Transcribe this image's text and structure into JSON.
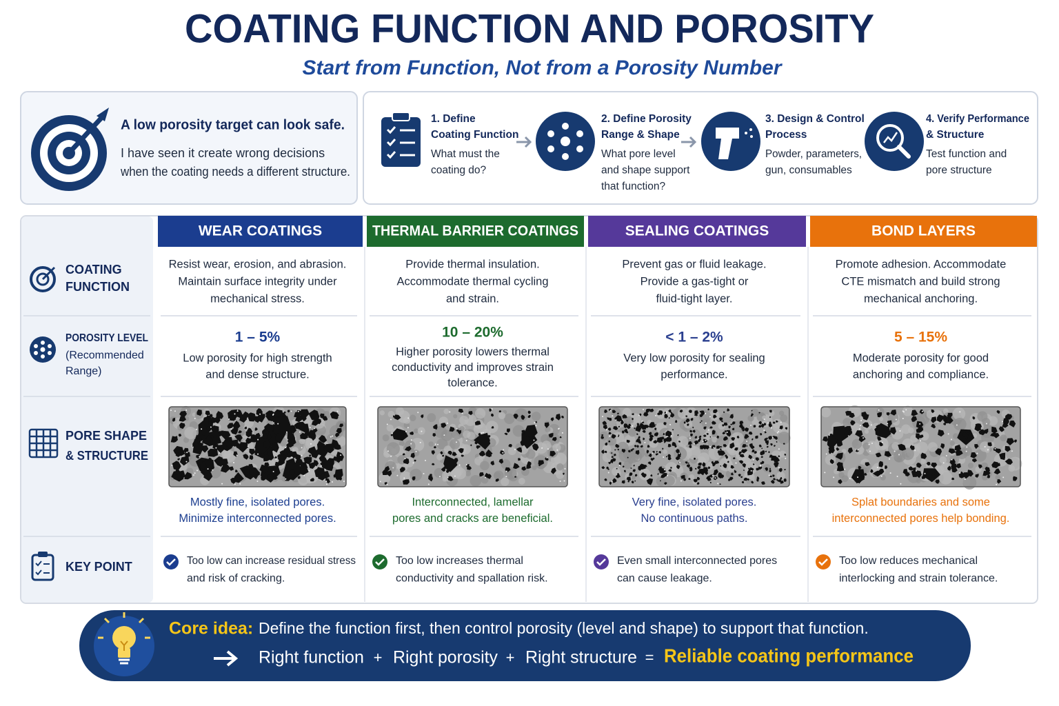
{
  "header": {
    "title": "COATING FUNCTION AND POROSITY",
    "subtitle": "Start from Function, Not from a Porosity Number"
  },
  "intro": {
    "heading": "A low porosity target can look safe.",
    "lines": [
      "I have seen it create wrong decisions",
      "when the coating needs a different structure."
    ]
  },
  "steps": [
    {
      "title": [
        "1. Define",
        "Coating Function"
      ],
      "text": [
        "What must the",
        "coating do?"
      ]
    },
    {
      "title": [
        "2. Define Porosity",
        "Range & Shape"
      ],
      "text": [
        "What pore level",
        "and shape support",
        "that function?"
      ]
    },
    {
      "title": [
        "3. Design & Control",
        "Process"
      ],
      "text": [
        "Powder, parameters,",
        "gun, consumables"
      ]
    },
    {
      "title": [
        "4. Verify Performance",
        "& Structure"
      ],
      "text": [
        "Test function and",
        "pore structure"
      ]
    }
  ],
  "table": {
    "row_labels": [
      {
        "lines": [
          "COATING",
          "FUNCTION"
        ]
      },
      {
        "lines": [
          "POROSITY LEVEL"
        ],
        "sub": [
          "(Recommended",
          "Range)"
        ]
      },
      {
        "lines": [
          "PORE SHAPE",
          "& STRUCTURE"
        ]
      },
      {
        "lines": [
          "KEY POINT"
        ]
      }
    ],
    "columns": [
      {
        "header": "WEAR COATINGS",
        "color": "#1b3d8f",
        "text_color": "#1b3d8f",
        "function": [
          "Resist wear, erosion, and abrasion.",
          "Maintain surface integrity under",
          "mechanical stress."
        ],
        "porosity": "1 – 5%",
        "porosity_text": [
          "Low porosity for high strength",
          "and dense structure."
        ],
        "pore_text": [
          "Mostly fine, isolated pores.",
          "Minimize interconnected pores."
        ],
        "key_point": [
          "Too low can increase residual stress",
          "and risk of cracking."
        ]
      },
      {
        "header": "THERMAL BARRIER COATINGS",
        "color": "#1d6b2e",
        "text_color": "#1d6b2e",
        "function": [
          "Provide thermal insulation.",
          "Accommodate thermal cycling",
          "and strain."
        ],
        "porosity": "10 – 20%",
        "porosity_text": [
          "Higher porosity lowers thermal",
          "conductivity and improves strain",
          "tolerance."
        ],
        "pore_text": [
          "Interconnected, lamellar",
          "pores and cracks are beneficial."
        ],
        "key_point": [
          "Too low increases thermal",
          "conductivity and spallation risk."
        ]
      },
      {
        "header": "SEALING COATINGS",
        "color": "#55399a",
        "text_color": "#2a3f8f",
        "function": [
          "Prevent gas or fluid leakage.",
          "Provide a gas-tight or",
          "fluid-tight layer."
        ],
        "porosity": "< 1 – 2%",
        "porosity_text": [
          "Very low porosity for sealing",
          "performance."
        ],
        "pore_text": [
          "Very fine, isolated pores.",
          "No continuous paths."
        ],
        "key_point": [
          "Even small interconnected pores",
          "can cause leakage."
        ]
      },
      {
        "header": "BOND LAYERS",
        "color": "#e8720c",
        "text_color": "#e8720c",
        "function": [
          "Promote adhesion. Accommodate",
          "CTE mismatch and build strong",
          "mechanical anchoring."
        ],
        "porosity": "5 – 15%",
        "porosity_text": [
          "Moderate porosity for good",
          "anchoring and compliance."
        ],
        "pore_text": [
          "Splat boundaries and some",
          "interconnected pores help bonding."
        ],
        "key_point": [
          "Too low reduces mechanical",
          "interlocking and strain tolerance."
        ]
      }
    ]
  },
  "footer": {
    "core_label": "Core idea:",
    "core_text": "Define the function first, then control porosity (level and shape) to support that function.",
    "equation": [
      "Right function",
      "+",
      "Right porosity",
      "+",
      "Right structure",
      "="
    ],
    "result": "Reliable coating performance"
  }
}
